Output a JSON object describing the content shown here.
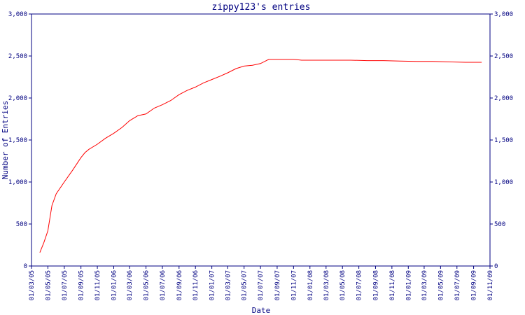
{
  "chart_data": {
    "type": "line",
    "title": "zippy123's entries",
    "xlabel": "Date",
    "ylabel": "Number of Entries",
    "ylim": [
      0,
      3000
    ],
    "y_ticks": [
      0,
      500,
      1000,
      1500,
      2000,
      2500,
      3000
    ],
    "y_tick_labels": [
      "0",
      "500",
      "1,000",
      "1,500",
      "2,000",
      "2,500",
      "3,000"
    ],
    "x_range": [
      "2005-03-01",
      "2009-11-01"
    ],
    "x_tick_dates": [
      "2005-03-01",
      "2005-05-01",
      "2005-07-01",
      "2005-09-01",
      "2005-11-01",
      "2006-01-01",
      "2006-03-01",
      "2006-05-01",
      "2006-07-01",
      "2006-09-01",
      "2006-11-01",
      "2007-01-01",
      "2007-03-01",
      "2007-05-01",
      "2007-07-01",
      "2007-09-01",
      "2007-11-01",
      "2008-01-01",
      "2008-03-01",
      "2008-05-01",
      "2008-07-01",
      "2008-09-01",
      "2008-11-01",
      "2009-01-01",
      "2009-03-01",
      "2009-05-01",
      "2009-07-01",
      "2009-09-01",
      "2009-11-01"
    ],
    "x_tick_labels": [
      "01/03/05",
      "01/05/05",
      "01/07/05",
      "01/09/05",
      "01/11/05",
      "01/01/06",
      "01/03/06",
      "01/05/06",
      "01/07/06",
      "01/09/06",
      "01/11/06",
      "01/01/07",
      "01/03/07",
      "01/05/07",
      "01/07/07",
      "01/09/07",
      "01/11/07",
      "01/01/08",
      "01/03/08",
      "01/05/08",
      "01/07/08",
      "01/09/08",
      "01/11/08",
      "01/01/09",
      "01/03/09",
      "01/05/09",
      "01/07/09",
      "01/09/09",
      "01/11/09"
    ],
    "grid": false,
    "colors": {
      "axis": "#000080",
      "line": "#ff0000"
    },
    "series": [
      {
        "x": [
          "2005-04-01",
          "2005-04-16",
          "2005-05-01",
          "2005-05-16",
          "2005-06-01",
          "2005-07-01",
          "2005-08-01",
          "2005-09-01",
          "2005-09-16",
          "2005-10-01",
          "2005-11-01",
          "2005-12-01",
          "2006-01-01",
          "2006-02-01",
          "2006-03-01",
          "2006-04-01",
          "2006-05-01",
          "2006-06-01",
          "2006-07-01",
          "2006-08-01",
          "2006-09-01",
          "2006-10-01",
          "2006-11-01",
          "2006-12-01",
          "2007-01-01",
          "2007-02-01",
          "2007-03-01",
          "2007-04-01",
          "2007-05-01",
          "2007-06-01",
          "2007-07-01",
          "2007-08-01",
          "2007-09-01",
          "2007-10-01",
          "2007-11-01",
          "2007-12-01",
          "2008-02-01",
          "2008-04-01",
          "2008-06-01",
          "2008-08-01",
          "2008-10-01",
          "2008-12-01",
          "2009-02-01",
          "2009-04-01",
          "2009-06-01",
          "2009-08-01",
          "2009-10-01"
        ],
        "values": [
          160,
          280,
          420,
          720,
          860,
          1000,
          1140,
          1290,
          1350,
          1390,
          1450,
          1520,
          1580,
          1650,
          1730,
          1790,
          1810,
          1880,
          1920,
          1970,
          2040,
          2090,
          2130,
          2180,
          2220,
          2260,
          2300,
          2350,
          2380,
          2390,
          2410,
          2460,
          2460,
          2460,
          2460,
          2450,
          2450,
          2450,
          2450,
          2445,
          2445,
          2440,
          2435,
          2435,
          2430,
          2425,
          2425
        ]
      }
    ]
  }
}
